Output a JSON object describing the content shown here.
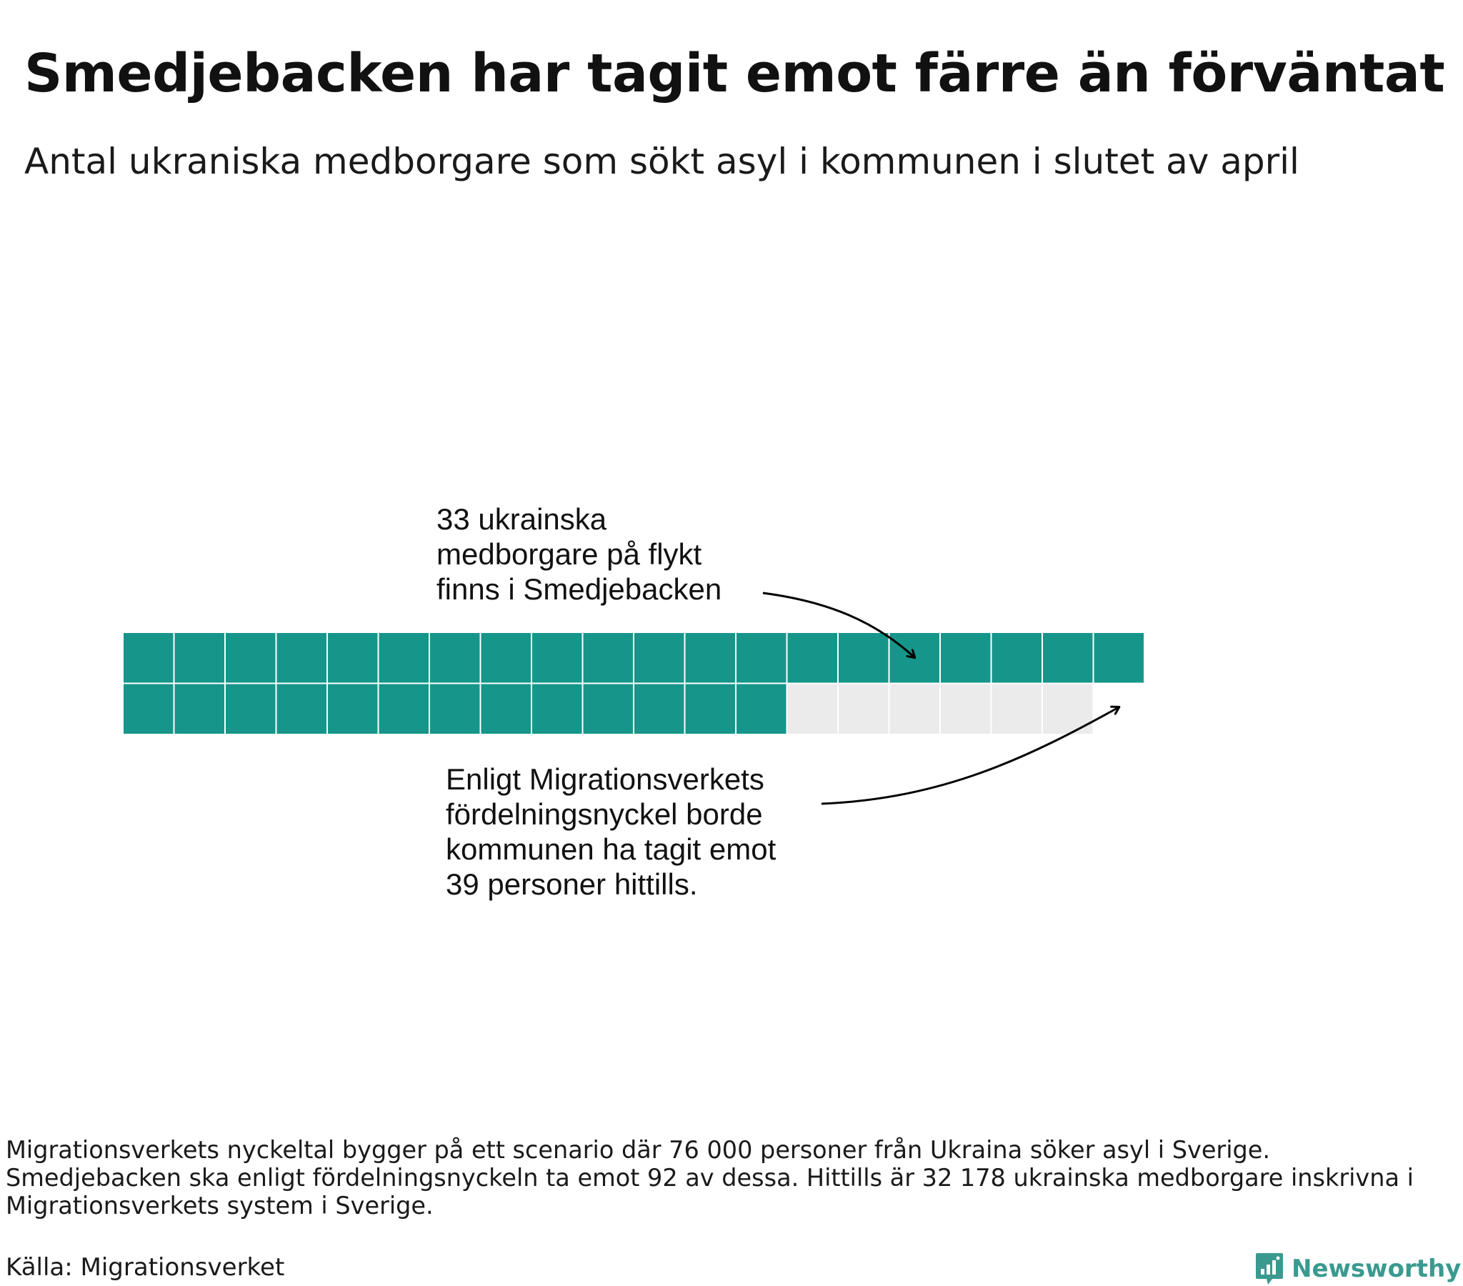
{
  "title": "Smedjebacken har tagit emot färre än förväntat",
  "subtitle": "Antal ukraniska medborgare som sökt asyl i kommunen i slutet av april",
  "chart_data": {
    "type": "waffle",
    "units_per_row": 20,
    "actual": 33,
    "expected": 39,
    "colors": {
      "filled": "#16968a",
      "empty": "#ebebeb",
      "grid_line": "#ffffff"
    },
    "annotations": {
      "actual": [
        "33 ukrainska",
        "medborgare på flykt",
        "finns i Smedjebacken"
      ],
      "expected": [
        "Enligt Migrationsverkets",
        "fördelningsnyckel borde",
        "kommunen ha tagit emot",
        "39 personer hittills."
      ]
    }
  },
  "footnote": [
    "Migrationsverkets nyckeltal bygger på ett scenario där 76 000 personer från Ukraina söker asyl i Sverige.",
    "Smedjebacken ska enligt fördelningsnyckeln ta emot 92 av dessa. Hittills är 32 178 ukrainska medborgare inskrivna i",
    "Migrationsverkets system i Sverige."
  ],
  "source": "Källa: Migrationsverket",
  "brand": {
    "name": "Newsworthy",
    "color": "#3a9a8f",
    "icon": "bar-chart-speech-bubble-icon"
  }
}
